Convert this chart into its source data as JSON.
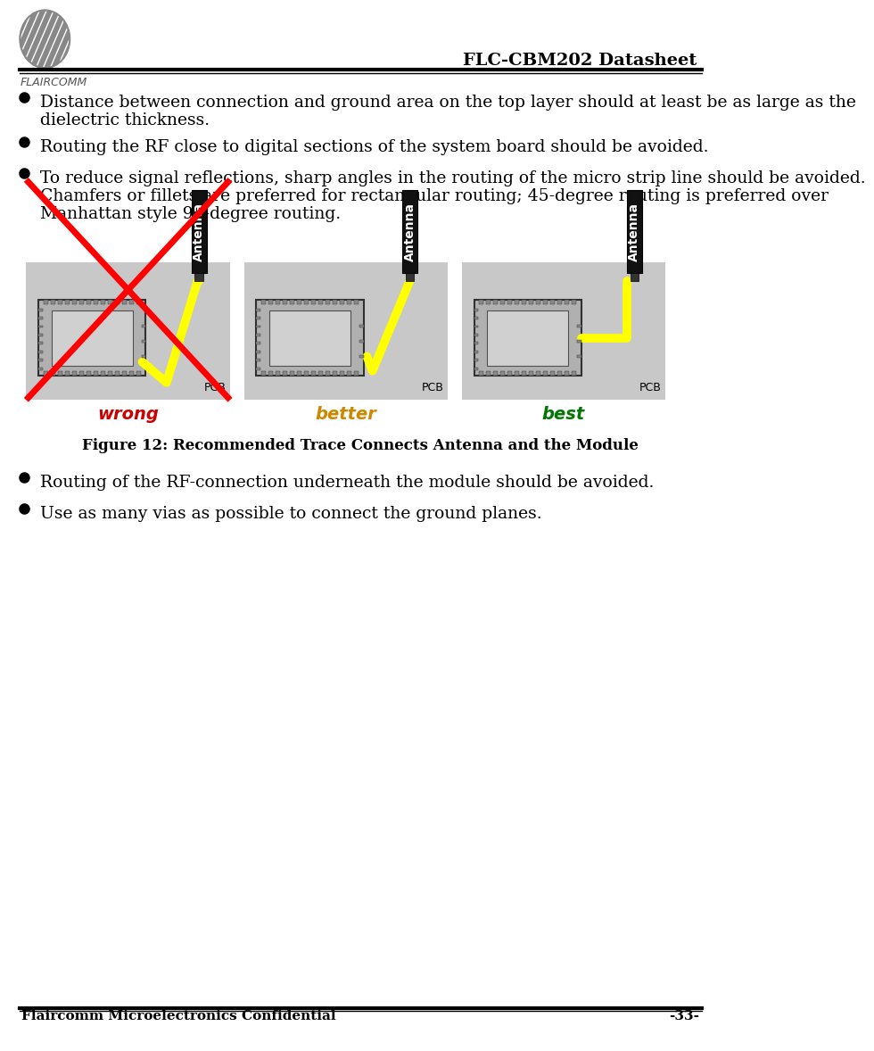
{
  "title_right": "FLC-CBM202 Datasheet",
  "footer_left": "Flaircomm Microelectronics Confidential",
  "footer_right": "-33-",
  "figure_caption": "Figure 12: Recommended Trace Connects Antenna and the Module",
  "label_wrong": "wrong",
  "label_better": "better",
  "label_best": "best",
  "label_pcb": "PCB",
  "wrong_color": "#cc0000",
  "better_color": "#cc8800",
  "best_color": "#007700",
  "bg_color": "#ffffff",
  "panel_bg": "#c8c8c8",
  "module_bg": "#b0b0b0",
  "module_inner": "#d0d0d0",
  "antenna_black": "#111111",
  "trace_yellow": "#ffff00",
  "bullet1_line1": "Distance between connection and ground area on the top layer should at least be as large as the",
  "bullet1_line2": "dielectric thickness.",
  "bullet2": "Routing the RF close to digital sections of the system board should be avoided.",
  "bullet3_line1": "To reduce signal reflections, sharp angles in the routing of the micro strip line should be avoided.",
  "bullet3_line2": "Chamfers or fillets are preferred for rectangular routing; 45-degree routing is preferred over",
  "bullet3_line3": "Manhattan style 90-degree routing.",
  "bullet4": "Routing of the RF-connection underneath the module should be avoided.",
  "bullet5": "Use as many vias as possible to connect the ground planes.",
  "text_fontsize": 13.5,
  "bullet_fontsize": 13.5,
  "caption_fontsize": 12,
  "footer_fontsize": 11
}
